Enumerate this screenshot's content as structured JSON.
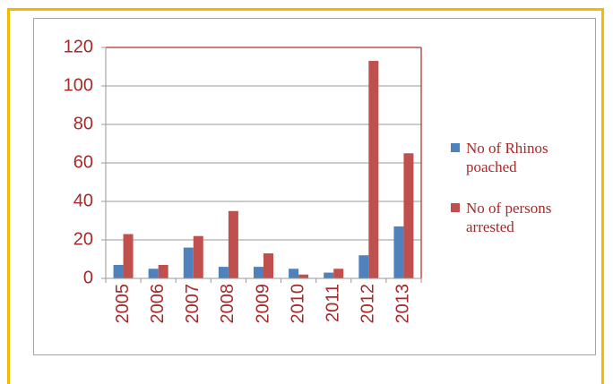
{
  "chart_data": {
    "type": "bar",
    "categories": [
      "2005",
      "2006",
      "2007",
      "2008",
      "2009",
      "2010",
      "2011",
      "2012",
      "2013"
    ],
    "series": [
      {
        "name": "No of Rhinos poached",
        "color": "#4f81bd",
        "values": [
          7,
          5,
          16,
          6,
          6,
          5,
          3,
          12,
          27
        ]
      },
      {
        "name": "No of persons arrested",
        "color": "#c0504d",
        "values": [
          23,
          7,
          22,
          35,
          13,
          2,
          5,
          113,
          65
        ]
      }
    ],
    "ylim": [
      0,
      120
    ],
    "yticks": [
      0,
      20,
      40,
      60,
      80,
      100,
      120
    ],
    "grid": true,
    "legend": "right"
  }
}
